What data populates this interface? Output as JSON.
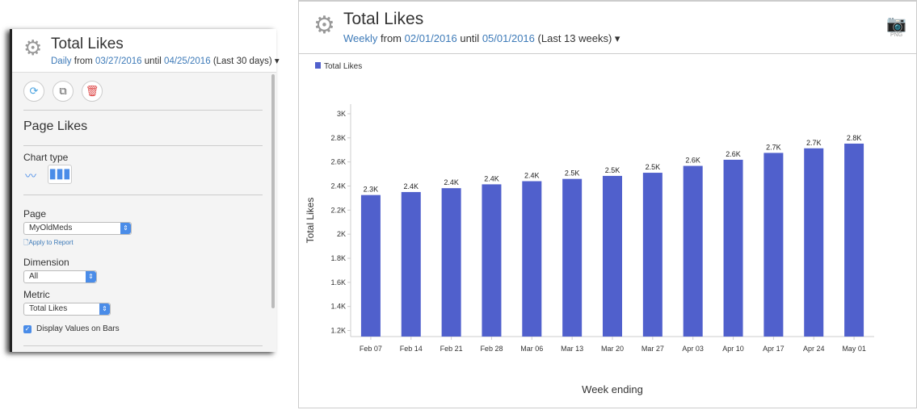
{
  "left_panel": {
    "title": "Total Likes",
    "granularity": "Daily",
    "from_label": "from",
    "from": "03/27/2016",
    "until_label": "until",
    "until": "04/25/2016",
    "range": "(Last 30 days)",
    "section_title": "Page Likes",
    "chart_type_label": "Chart type",
    "page_label": "Page",
    "page_value": "MyOldMeds",
    "apply_label": "Apply to Report",
    "dimension_label": "Dimension",
    "dimension_value": "All",
    "metric_label": "Metric",
    "metric_value": "Total Likes",
    "display_values_label": "Display Values on Bars",
    "display_values_checked": true
  },
  "right_panel": {
    "title": "Total Likes",
    "granularity": "Weekly",
    "from_label": "from",
    "from": "02/01/2016",
    "until_label": "until",
    "until": "05/01/2016",
    "range": "(Last 13 weeks)",
    "export_label": "PNG"
  },
  "chart_data": {
    "type": "bar",
    "title": "",
    "legend": [
      "Total Likes"
    ],
    "legend_position": "top-left",
    "xlabel": "Week ending",
    "ylabel": "Total Likes",
    "color": "#5060cc",
    "categories": [
      "Feb 07",
      "Feb 14",
      "Feb 21",
      "Feb 28",
      "Mar 06",
      "Mar 13",
      "Mar 20",
      "Mar 27",
      "Apr 03",
      "Apr 10",
      "Apr 17",
      "Apr 24",
      "May 01"
    ],
    "values": [
      2325,
      2350,
      2382,
      2414,
      2440,
      2459,
      2484,
      2510,
      2567,
      2618,
      2675,
      2713,
      2752
    ],
    "data_labels": [
      "2.3K",
      "2.4K",
      "2.4K",
      "2.4K",
      "2.4K",
      "2.5K",
      "2.5K",
      "2.5K",
      "2.6K",
      "2.6K",
      "2.7K",
      "2.7K",
      "2.8K"
    ],
    "yticks": [
      1200,
      1400,
      1600,
      1800,
      2000,
      2200,
      2400,
      2600,
      2800,
      3000
    ],
    "ytick_labels": [
      "1.2K",
      "1.4K",
      "1.6K",
      "1.8K",
      "2K",
      "2.2K",
      "2.4K",
      "2.6K",
      "2.8K",
      "3K"
    ],
    "ylim": [
      1150,
      3080
    ]
  }
}
